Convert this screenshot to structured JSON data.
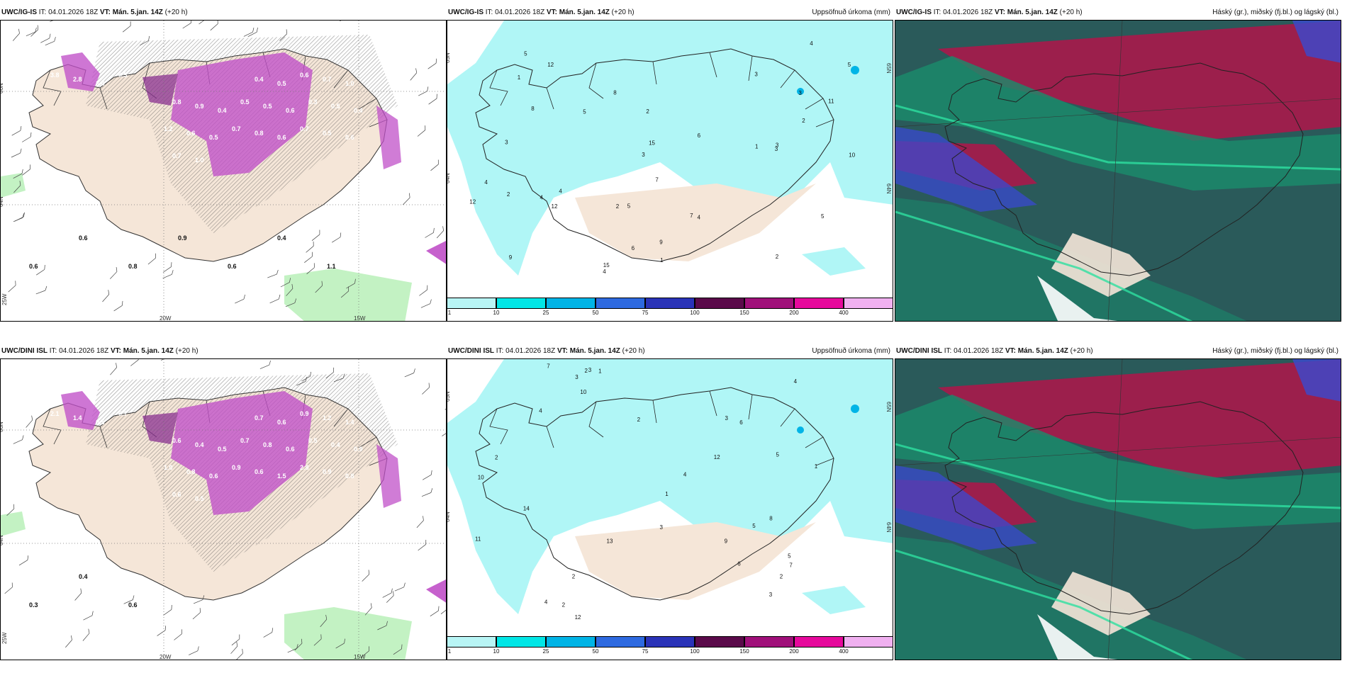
{
  "panels": [
    {
      "model": "UWC/IG-IS",
      "it_prefix": "IT:",
      "it": "04.01.2026 18Z",
      "vt_prefix": "VT:",
      "vt": "Mán. 5.jan. 14Z",
      "lead": "(+20 h)",
      "right_title": "",
      "lat_labels": [
        "66N",
        "64N"
      ],
      "lon_labels": [
        "20W",
        "15W"
      ],
      "left_lon_label": "25W",
      "values": [
        "3.8",
        "2.8",
        "3.4",
        "0.3",
        "0.4",
        "0.5",
        "0.6",
        "0.7",
        "1.0",
        "0.8",
        "0.9",
        "0.4",
        "0.5",
        "0.5",
        "0.6",
        "0.3",
        "0.5",
        "0.4",
        "1.2",
        "0.6",
        "0.5",
        "0.7",
        "0.8",
        "0.6",
        "0.7",
        "0.5",
        "0.6",
        "0.7",
        "1.0",
        "0.6",
        "0.6",
        "0.8",
        "0.9",
        "0.6",
        "0.4",
        "1.1"
      ]
    },
    {
      "model": "UWC/IG-IS",
      "it_prefix": "IT:",
      "it": "04.01.2026 18Z",
      "vt_prefix": "VT:",
      "vt": "Mán. 5.jan. 14Z",
      "lead": "(+20 h)",
      "right_title": "Uppsöfnuð úrkoma (mm)",
      "lat_labels": [
        "65N",
        "64N"
      ],
      "values": [
        "1",
        "2",
        "3",
        "7",
        "9",
        "8",
        "3",
        "4",
        "5",
        "10",
        "12",
        "12",
        "15",
        "11",
        "9",
        "5",
        "4",
        "2",
        "3",
        "6",
        "7",
        "1",
        "4",
        "3",
        "2",
        "5",
        "6",
        "8",
        "4",
        "3",
        "2",
        "1",
        "4",
        "3",
        "2",
        "5",
        "5",
        "4",
        "12",
        "15"
      ]
    },
    {
      "model": "UWC/IG-IS",
      "it_prefix": "IT:",
      "it": "04.01.2026 18Z",
      "vt_prefix": "VT:",
      "vt": "Mán. 5.jan. 14Z",
      "lead": "(+20 h)",
      "right_title": "Háský (gr.), miðský (fj.bl.) og lágský (bl.)"
    },
    {
      "model": "UWC/DINI ISL",
      "it_prefix": "IT:",
      "it": "04.01.2026 18Z",
      "vt_prefix": "VT:",
      "vt": "Mán. 5.jan. 14Z",
      "lead": "(+20 h)",
      "right_title": "",
      "lat_labels": [
        "66N",
        "64N"
      ],
      "lon_labels": [
        "20W",
        "15W"
      ],
      "left_lon_label": "25W",
      "values": [
        "2.1",
        "1.4",
        "0.5",
        "0.7",
        "0.7",
        "0.6",
        "0.9",
        "1.2",
        "1.4",
        "0.6",
        "0.4",
        "0.5",
        "0.7",
        "0.8",
        "0.6",
        "0.5",
        "0.4",
        "0.9",
        "1.0",
        "0.8",
        "0.6",
        "0.9",
        "0.6",
        "1.5",
        "2.8",
        "0.9",
        "0.8",
        "0.6",
        "0.5",
        "0.3",
        "0.4",
        "0.6"
      ]
    },
    {
      "model": "UWC/DINI ISL",
      "it_prefix": "IT:",
      "it": "04.01.2026 18Z",
      "vt_prefix": "VT:",
      "vt": "Mán. 5.jan. 14Z",
      "lead": "(+20 h)",
      "right_title": "Uppsöfnuð úrkoma (mm)",
      "lat_labels": [
        "65N",
        "64N"
      ],
      "values": [
        "2",
        "3",
        "5",
        "6",
        "4",
        "9",
        "7",
        "12",
        "12",
        "14",
        "13",
        "11",
        "10",
        "8",
        "7",
        "5",
        "4",
        "3",
        "2",
        "1",
        "4",
        "3",
        "2",
        "6",
        "5",
        "3",
        "2",
        "1",
        "2",
        "10",
        "1",
        "3",
        "2",
        "4"
      ]
    },
    {
      "model": "UWC/DINI ISL",
      "it_prefix": "IT:",
      "it": "04.01.2026 18Z",
      "vt_prefix": "VT:",
      "vt": "Mán. 5.jan. 14Z",
      "lead": "(+20 h)",
      "right_title": "Háský (gr.), miðský (fj.bl.) og lágský (bl.)"
    }
  ],
  "colorbar": {
    "labels": [
      "1",
      "10",
      "25",
      "50",
      "75",
      "100",
      "150",
      "200",
      "400"
    ],
    "colors": [
      "#b8f5f5",
      "#00e6e6",
      "#00b4e6",
      "#2e6ae0",
      "#2a33b8",
      "#5a0a4a",
      "#a0107a",
      "#e6099c",
      "#f0b0f0"
    ]
  },
  "colors": {
    "land": "#f5e6d8",
    "precip_light": "#b0f6f6",
    "rain_green": "#b8f0b8",
    "snow_purple": "#c050c8",
    "cloud_high": "#a8184a",
    "cloud_mid": "#1a8c6c",
    "cloud_low": "#3a4ad0"
  }
}
